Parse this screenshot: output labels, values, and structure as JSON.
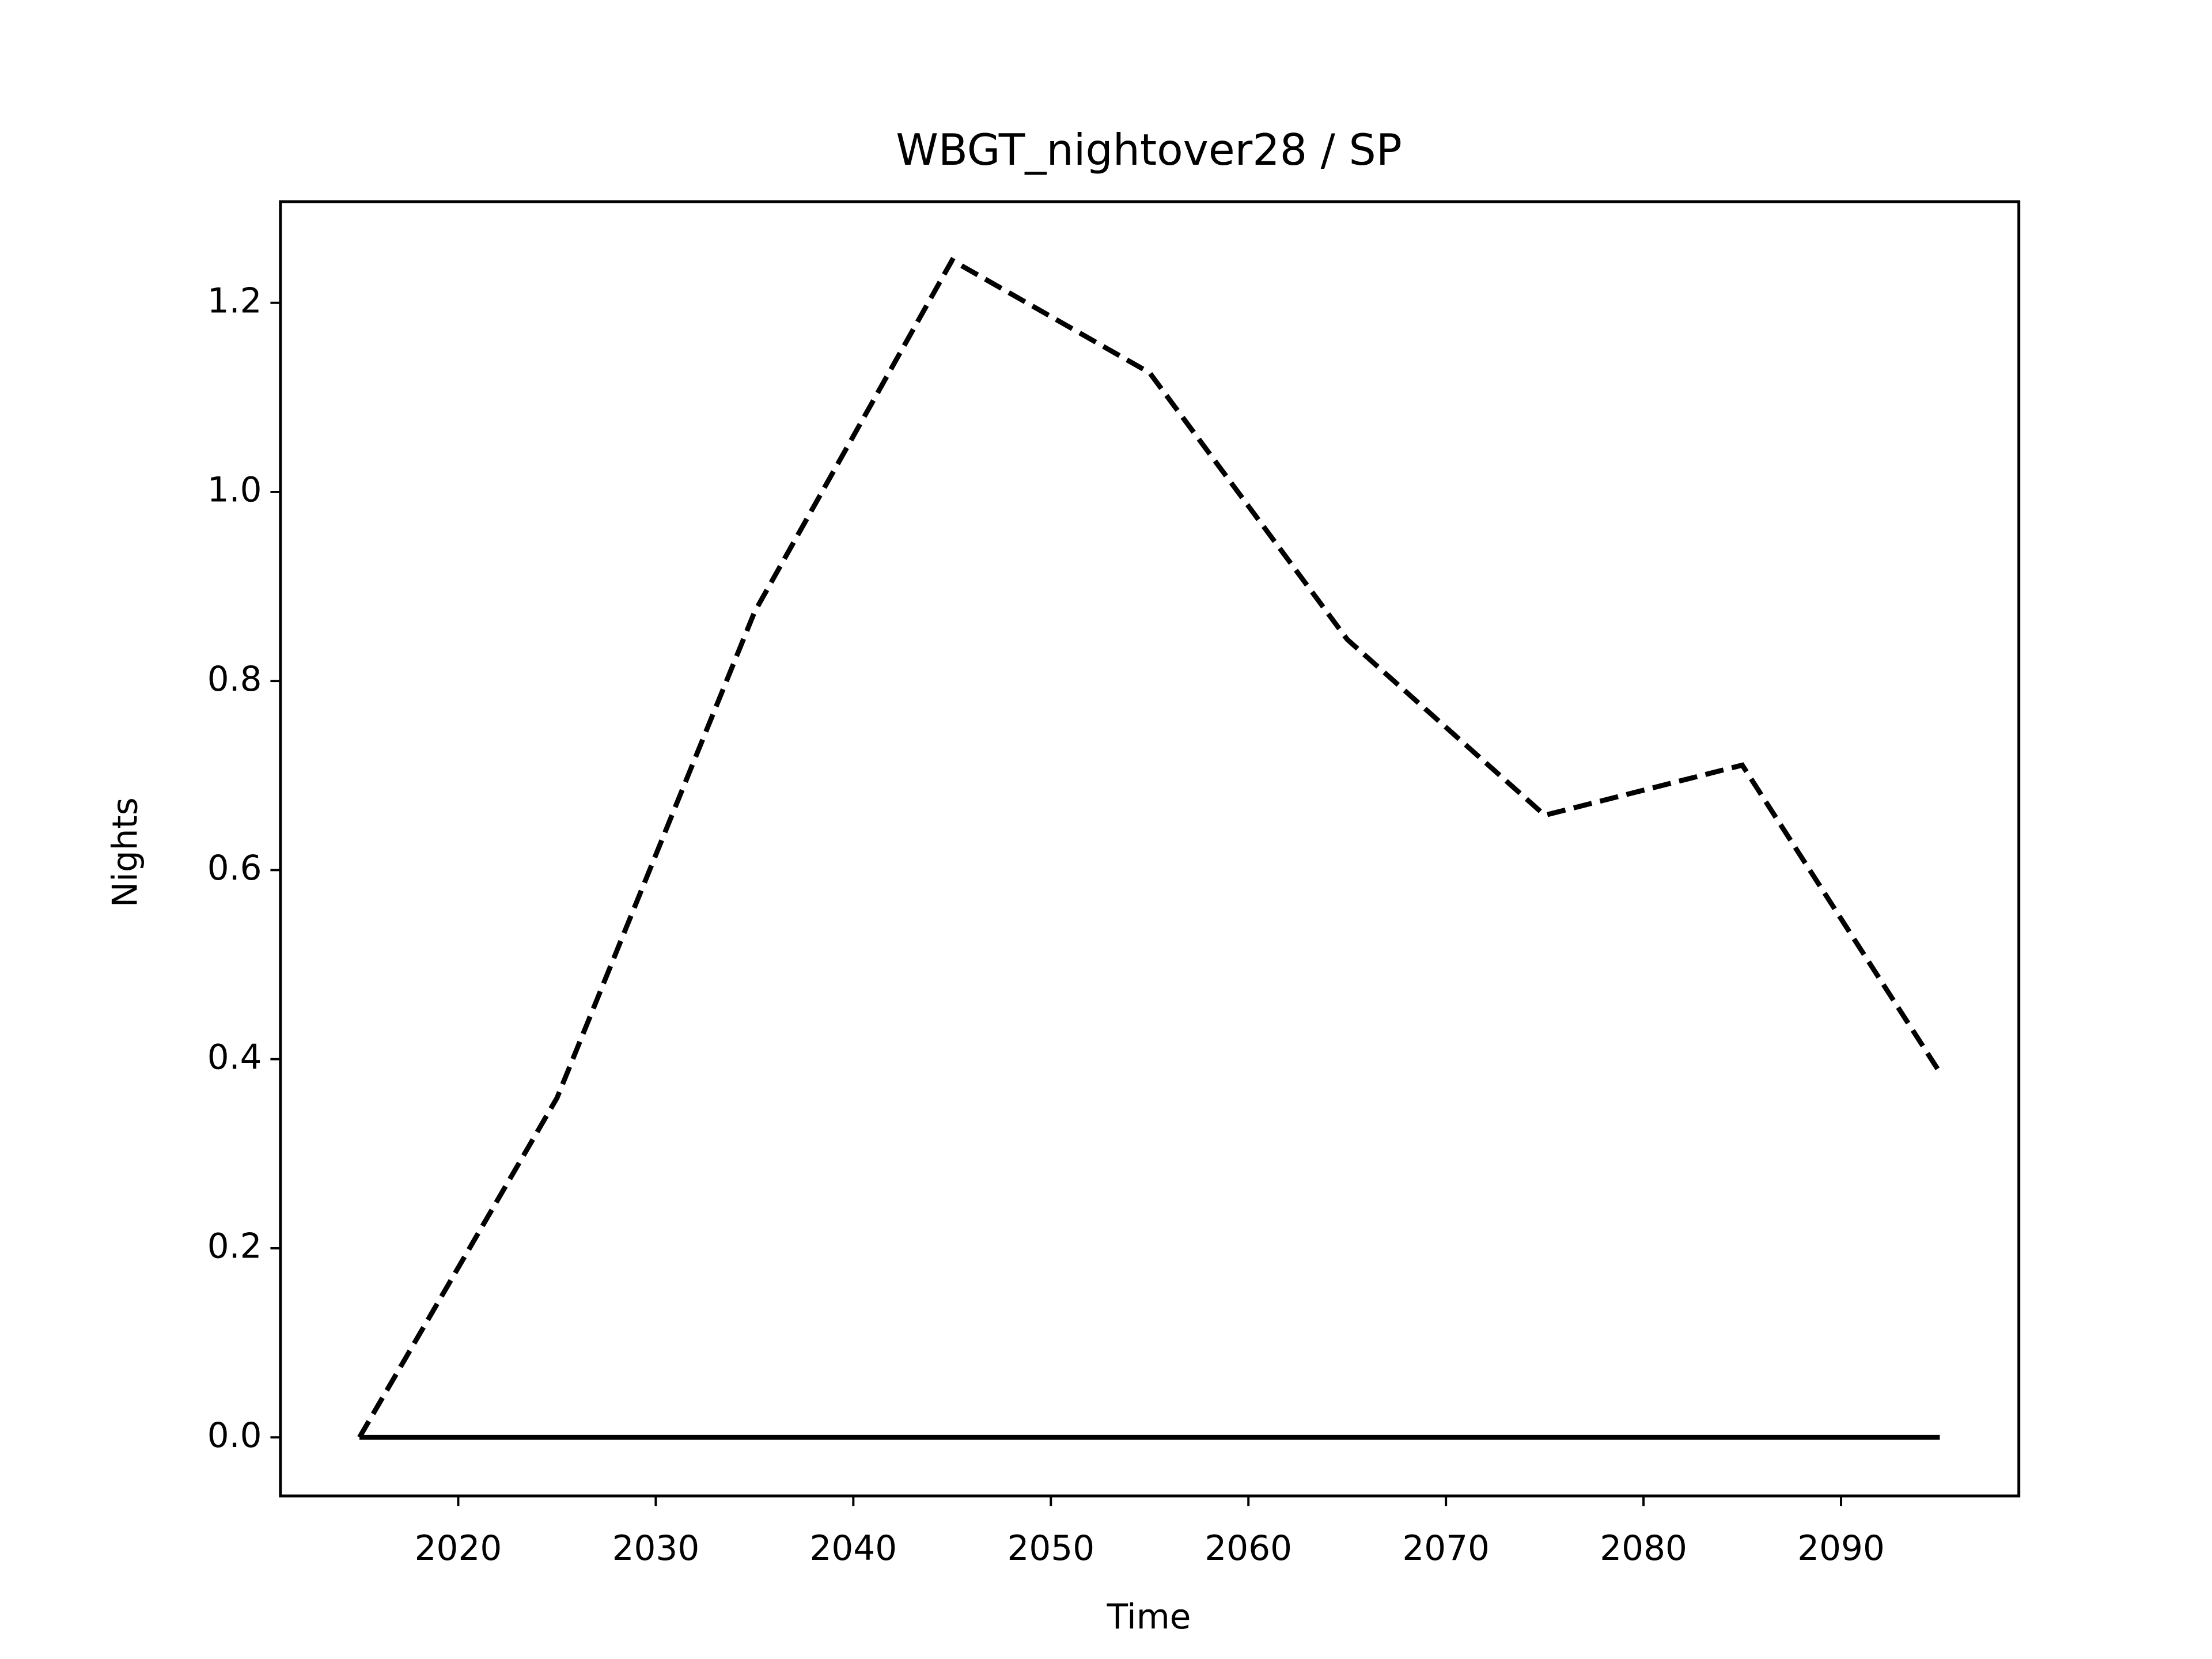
{
  "chart_data": {
    "type": "line",
    "title": "WBGT_nightover28 / SP",
    "xlabel": "Time",
    "ylabel": "Nights",
    "x": [
      2015,
      2025,
      2035,
      2045,
      2055,
      2065,
      2075,
      2085,
      2095
    ],
    "series": [
      {
        "color": "#000000",
        "style": "dashed",
        "values": [
          0,
          0.359,
          0.873,
          1.245,
          1.126,
          0.844,
          0.658,
          0.711,
          0.386
        ]
      },
      {
        "color": "#000000",
        "style": "solid",
        "values": [
          0,
          0,
          0,
          0,
          0,
          0,
          0,
          0,
          0
        ]
      }
    ],
    "xlim": [
      2011,
      2099
    ],
    "ylim": [
      -0.062,
      1.307
    ],
    "xticks": [
      2020,
      2030,
      2040,
      2050,
      2060,
      2070,
      2080,
      2090
    ],
    "yticks": [
      {
        "value": 0,
        "label": "0.0"
      },
      {
        "value": 0.2,
        "label": "0.2"
      },
      {
        "value": 0.4,
        "label": "0.4"
      },
      {
        "value": 0.6,
        "label": "0.6"
      },
      {
        "value": 0.8,
        "label": "0.8"
      },
      {
        "value": 1.0,
        "label": "1.0"
      },
      {
        "value": 1.2,
        "label": "1.2"
      }
    ],
    "grid": false
  }
}
